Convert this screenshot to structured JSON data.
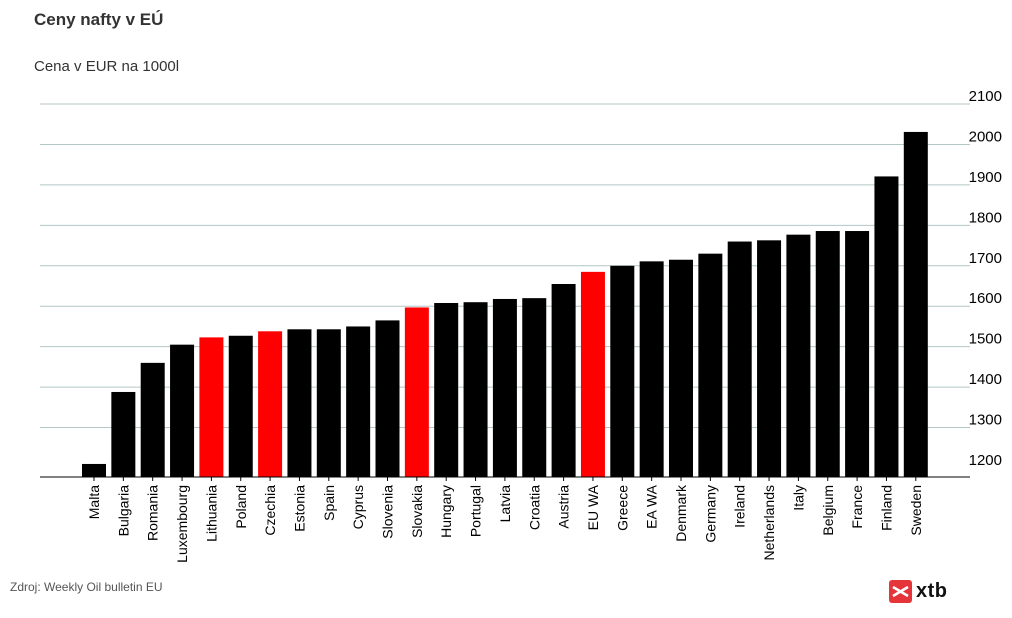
{
  "title": "Ceny nafty v EÚ",
  "subtitle": "Cena v EUR na 1000l",
  "source": "Zdroj: Weekly Oil bulletin EU",
  "logo": {
    "text": "xtb",
    "icon": "xtb-logo-icon",
    "color": "#e5343a"
  },
  "chart_data": {
    "type": "bar",
    "categories": [
      "Malta",
      "Bulgaria",
      "Romania",
      "Luxembourg",
      "Lithuania",
      "Poland",
      "Czechia",
      "Estonia",
      "Spain",
      "Cyprus",
      "Slovenia",
      "Slovakia",
      "Hungary",
      "Portugal",
      "Latvia",
      "Croatia",
      "Austria",
      "EU WA",
      "Greece",
      "EA WA",
      "Denmark",
      "Germany",
      "Ireland",
      "Netherlands",
      "Italy",
      "Belgium",
      "France",
      "Finland",
      "Sweden"
    ],
    "values": [
      1210,
      1388,
      1460,
      1505,
      1523,
      1527,
      1538,
      1543,
      1543,
      1550,
      1565,
      1597,
      1608,
      1610,
      1618,
      1620,
      1655,
      1685,
      1700,
      1711,
      1715,
      1730,
      1760,
      1763,
      1777,
      1786,
      1786,
      1921,
      2031
    ],
    "highlighted": [
      "Lithuania",
      "Czechia",
      "Slovakia",
      "EU WA"
    ],
    "colors": {
      "default": "#000000",
      "highlight": "#ff0000",
      "grid": "#b4c6c6"
    },
    "yticks": [
      1200,
      1300,
      1400,
      1500,
      1600,
      1700,
      1800,
      1900,
      2000,
      2100
    ],
    "ylim": [
      1190,
      2110
    ],
    "yaxis_position": "right",
    "grid": true,
    "xlabel": "",
    "ylabel": ""
  }
}
